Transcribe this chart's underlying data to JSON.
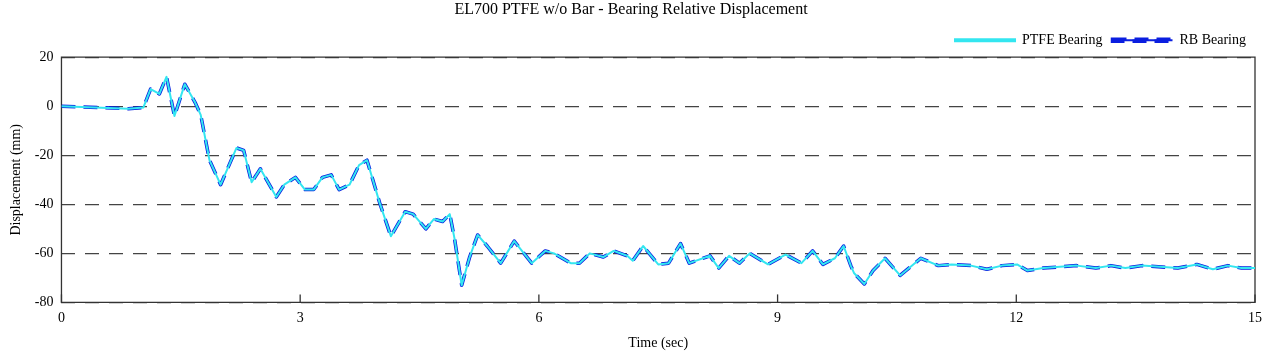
{
  "chart_data": {
    "type": "line",
    "title": "EL700 PTFE w/o Bar - Bearing Relative Displacement",
    "xlabel": "Time (sec)",
    "ylabel": "Displacement (mm)",
    "x": [
      0,
      0.84,
      1.03,
      1.12,
      1.23,
      1.32,
      1.42,
      1.55,
      1.68,
      1.75,
      1.86,
      2.0,
      2.12,
      2.2,
      2.29,
      2.39,
      2.5,
      2.7,
      2.8,
      2.94,
      3.06,
      3.17,
      3.28,
      3.39,
      3.49,
      3.62,
      3.74,
      3.84,
      4.0,
      4.14,
      4.32,
      4.42,
      4.58,
      4.68,
      4.79,
      4.88,
      4.94,
      5.03,
      5.13,
      5.23,
      5.35,
      5.52,
      5.69,
      5.91,
      6.08,
      6.19,
      6.4,
      6.51,
      6.64,
      6.81,
      6.94,
      7.11,
      7.18,
      7.31,
      7.5,
      7.63,
      7.78,
      7.89,
      8.15,
      8.26,
      8.39,
      8.52,
      8.65,
      8.88,
      9.1,
      9.3,
      9.44,
      9.57,
      9.72,
      9.83,
      9.92,
      9.96,
      10.09,
      10.2,
      10.35,
      10.54,
      10.8,
      11.02,
      11.19,
      11.43,
      11.63,
      11.82,
      12.01,
      12.14,
      12.34,
      12.76,
      13.0,
      13.19,
      13.37,
      13.58,
      14.03,
      14.27,
      14.47,
      14.66,
      14.83,
      15
    ],
    "series": [
      {
        "name": "PTFE Bearing",
        "color": "#33e6f0",
        "line_style": "solid",
        "values": [
          0,
          -1,
          -0.5,
          7,
          5,
          12,
          -4,
          9,
          1.5,
          -3.5,
          -22,
          -32,
          -23,
          -17,
          -18,
          -31,
          -25.5,
          -37,
          -32,
          -29,
          -34,
          -34,
          -29,
          -28,
          -34,
          -32,
          -24,
          -22,
          -39.5,
          -53,
          -43,
          -44,
          -50,
          -46,
          -47,
          -44,
          -54,
          -73,
          -61.5,
          -52.5,
          -57,
          -64,
          -55,
          -64,
          -59,
          -60,
          -64,
          -64,
          -60,
          -61.5,
          -59,
          -61,
          -63,
          -57,
          -64.5,
          -64,
          -56,
          -64,
          -61,
          -66,
          -61,
          -64,
          -60,
          -64.5,
          -60.5,
          -64,
          -59,
          -64.5,
          -62,
          -57,
          -65,
          -68,
          -72.5,
          -67,
          -62,
          -69,
          -62,
          -65,
          -64.5,
          -65,
          -66.5,
          -65,
          -64.5,
          -67,
          -66,
          -65,
          -66,
          -65,
          -66,
          -65,
          -66,
          -64.5,
          -66.5,
          -65,
          -66,
          -66
        ]
      },
      {
        "name": "RB Bearing",
        "color": "#0a1ee0",
        "line_style": "dashed",
        "values": [
          0,
          -1,
          -0.5,
          7,
          5,
          12,
          -4,
          9,
          1.5,
          -3.5,
          -22,
          -32,
          -23,
          -17,
          -18,
          -31,
          -25.5,
          -37,
          -32,
          -29,
          -34,
          -34,
          -29,
          -28,
          -34,
          -32,
          -24,
          -22,
          -39.5,
          -53,
          -43,
          -44,
          -50,
          -46,
          -47,
          -44,
          -54,
          -73,
          -61.5,
          -52.5,
          -57,
          -64,
          -55,
          -64,
          -59,
          -60,
          -64,
          -64,
          -60,
          -61.5,
          -59,
          -61,
          -63,
          -57,
          -64.5,
          -64,
          -56,
          -64,
          -61,
          -66,
          -61,
          -64,
          -60,
          -64.5,
          -60.5,
          -64,
          -59,
          -64.5,
          -62,
          -57,
          -65,
          -68,
          -72.5,
          -67,
          -62,
          -69,
          -62,
          -65,
          -64.5,
          -65,
          -66.5,
          -65,
          -64.5,
          -67,
          -66,
          -65,
          -66,
          -65,
          -66,
          -65,
          -66,
          -64.5,
          -66.5,
          -65,
          -66,
          -66
        ]
      }
    ],
    "xlim": [
      0,
      15
    ],
    "xticks": [
      0,
      3,
      6,
      9,
      12,
      15
    ],
    "ylim": [
      -80,
      20
    ],
    "yticks": [
      -80,
      -60,
      -40,
      -20,
      0,
      20
    ],
    "grid": "y",
    "legend": "top right",
    "marker": "none"
  }
}
